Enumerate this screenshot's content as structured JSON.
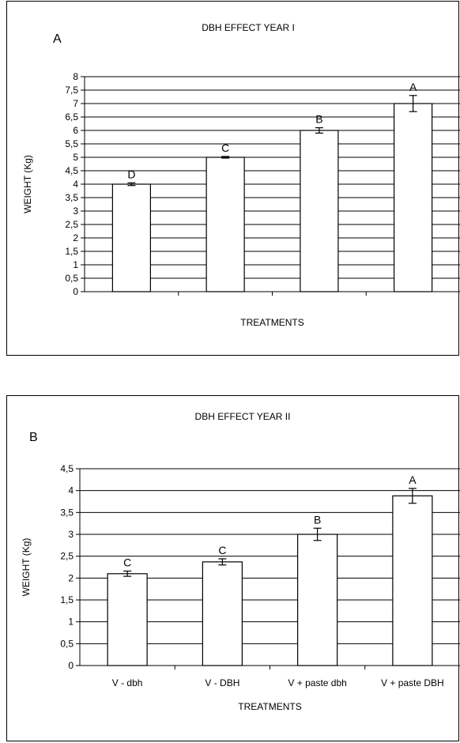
{
  "chart_data": [
    {
      "type": "bar",
      "panel_label": "A",
      "title": "DBH EFFECT YEAR I",
      "xlabel": "TREATMENTS",
      "ylabel": "WEIGHT (Kg)",
      "ylim": [
        0,
        8
      ],
      "ytick_labels": [
        "0",
        "0,5",
        "1",
        "1,5",
        "2",
        "2,5",
        "3",
        "3,5",
        "4",
        "4,5",
        "5",
        "5,5",
        "6",
        "6,5",
        "7",
        "7,5",
        "8"
      ],
      "categories": [
        "",
        "",
        "",
        ""
      ],
      "values": [
        4.0,
        5.0,
        6.0,
        7.0
      ],
      "errors": [
        0.05,
        0.03,
        0.1,
        0.3
      ],
      "significance_letters": [
        "D",
        "C",
        "B",
        "A"
      ],
      "grid": true
    },
    {
      "type": "bar",
      "panel_label": "B",
      "title": "DBH EFFECT YEAR II",
      "xlabel": "TREATMENTS",
      "ylabel": "WEIGHT (Kg)",
      "ylim": [
        0,
        4.5
      ],
      "ytick_labels": [
        "0",
        "0,5",
        "1",
        "1,5",
        "2",
        "2,5",
        "3",
        "3,5",
        "4",
        "4,5"
      ],
      "categories": [
        "V - dbh",
        "V - DBH",
        "V + paste dbh",
        "V + paste DBH"
      ],
      "values": [
        2.1,
        2.37,
        3.0,
        3.88
      ],
      "errors": [
        0.06,
        0.07,
        0.14,
        0.17
      ],
      "significance_letters": [
        "C",
        "C",
        "B",
        "A"
      ],
      "grid": true
    }
  ]
}
